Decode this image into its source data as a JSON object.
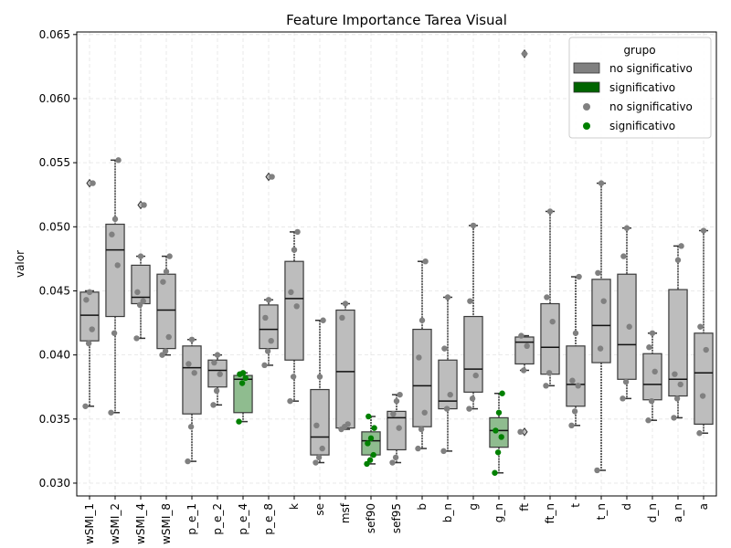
{
  "chart_data": {
    "type": "box",
    "title": "Feature Importance Tarea Visual",
    "xlabel": "",
    "ylabel": "valor",
    "ylim": [
      0.029,
      0.0652
    ],
    "yticks": [
      0.03,
      0.035,
      0.04,
      0.045,
      0.05,
      0.055,
      0.06,
      0.065
    ],
    "ytick_labels": [
      "0.030",
      "0.035",
      "0.040",
      "0.045",
      "0.050",
      "0.055",
      "0.060",
      "0.065"
    ],
    "grid": true,
    "legend": {
      "title": "grupo",
      "placement": "top-right",
      "entries": [
        {
          "label": "no significativo",
          "kind": "box",
          "color": "#808080"
        },
        {
          "label": "significativo",
          "kind": "box",
          "color": "#006400"
        },
        {
          "label": "no significativo",
          "kind": "point",
          "color": "#808080"
        },
        {
          "label": "significativo",
          "kind": "point",
          "color": "#008000"
        }
      ]
    },
    "colors": {
      "box_ns": "#bdbdbd",
      "box_sig": "#8fbc8f",
      "point_ns": "#808080",
      "point_sig": "#008000"
    },
    "categories": [
      "wSMI_1",
      "wSMI_2",
      "wSMI_4",
      "wSMI_8",
      "p_e_1",
      "p_e_2",
      "p_e_4",
      "p_e_8",
      "k",
      "se",
      "msf",
      "sef90",
      "sef95",
      "b",
      "b_n",
      "g",
      "g_n",
      "ft",
      "ft_n",
      "t",
      "t_n",
      "d",
      "d_n",
      "a_n",
      "a"
    ],
    "tick_labels": [
      "wSMI_1",
      "wSMI_2",
      "wSMI_4",
      "wSMI_8",
      "p_e_1",
      "p_e_2",
      "p_e_4",
      "p_e_8",
      "k",
      "se",
      "msf",
      "sef90",
      "sef95",
      "b",
      "b_n",
      "g",
      "g_n",
      "ft",
      "ft_n",
      "t",
      "t_n",
      "d",
      "d_n",
      "a_n",
      "a"
    ],
    "boxes": [
      {
        "label": "wSMI_1",
        "group": "no significativo",
        "q1": 0.0411,
        "median": 0.0431,
        "q3": 0.0449,
        "whislo": 0.036,
        "whishi": 0.045,
        "fliers": [
          0.0534
        ],
        "points": [
          0.036,
          0.0409,
          0.042,
          0.0443,
          0.0449,
          0.0534
        ]
      },
      {
        "label": "wSMI_2",
        "group": "no significativo",
        "q1": 0.043,
        "median": 0.0482,
        "q3": 0.0502,
        "whislo": 0.0355,
        "whishi": 0.0552,
        "fliers": [],
        "points": [
          0.0355,
          0.0417,
          0.047,
          0.0494,
          0.0506,
          0.0552
        ]
      },
      {
        "label": "wSMI_4",
        "group": "no significativo",
        "q1": 0.044,
        "median": 0.0445,
        "q3": 0.047,
        "whislo": 0.0413,
        "whishi": 0.0477,
        "fliers": [
          0.0517
        ],
        "points": [
          0.0413,
          0.0439,
          0.0442,
          0.0449,
          0.0477,
          0.0517
        ]
      },
      {
        "label": "wSMI_8",
        "group": "no significativo",
        "q1": 0.0405,
        "median": 0.0435,
        "q3": 0.0463,
        "whislo": 0.04,
        "whishi": 0.0477,
        "fliers": [],
        "points": [
          0.04,
          0.0403,
          0.0414,
          0.0457,
          0.0465,
          0.0477
        ]
      },
      {
        "label": "p_e_1",
        "group": "no significativo",
        "q1": 0.0354,
        "median": 0.039,
        "q3": 0.0407,
        "whislo": 0.0317,
        "whishi": 0.0412,
        "fliers": [],
        "points": [
          0.0317,
          0.0344,
          0.0386,
          0.0393,
          0.0412
        ]
      },
      {
        "label": "p_e_2",
        "group": "no significativo",
        "q1": 0.0375,
        "median": 0.0388,
        "q3": 0.0396,
        "whislo": 0.0361,
        "whishi": 0.04,
        "fliers": [],
        "points": [
          0.0361,
          0.0372,
          0.0385,
          0.0394,
          0.04
        ]
      },
      {
        "label": "p_e_4",
        "group": "significativo",
        "q1": 0.0355,
        "median": 0.0381,
        "q3": 0.0384,
        "whislo": 0.0348,
        "whishi": 0.0386,
        "fliers": [],
        "points": [
          0.0348,
          0.0378,
          0.0382,
          0.0385,
          0.0386
        ]
      },
      {
        "label": "p_e_8",
        "group": "no significativo",
        "q1": 0.0405,
        "median": 0.042,
        "q3": 0.0439,
        "whislo": 0.0392,
        "whishi": 0.0443,
        "fliers": [
          0.0539
        ],
        "points": [
          0.0392,
          0.0403,
          0.0411,
          0.0429,
          0.0443,
          0.0539
        ]
      },
      {
        "label": "k",
        "group": "no significativo",
        "q1": 0.0396,
        "median": 0.0444,
        "q3": 0.0473,
        "whislo": 0.0364,
        "whishi": 0.0496,
        "fliers": [],
        "points": [
          0.0364,
          0.0383,
          0.0438,
          0.0449,
          0.0482,
          0.0496
        ]
      },
      {
        "label": "se",
        "group": "no significativo",
        "q1": 0.0322,
        "median": 0.0336,
        "q3": 0.0373,
        "whislo": 0.0316,
        "whishi": 0.0427,
        "fliers": [],
        "points": [
          0.0316,
          0.032,
          0.0327,
          0.0345,
          0.0383,
          0.0427
        ]
      },
      {
        "label": "msf",
        "group": "no significativo",
        "q1": 0.0343,
        "median": 0.0387,
        "q3": 0.0435,
        "whislo": 0.0342,
        "whishi": 0.044,
        "fliers": [],
        "points": [
          0.0342,
          0.0344,
          0.0346,
          0.0429,
          0.044
        ]
      },
      {
        "label": "sef90",
        "group": "significativo",
        "q1": 0.0322,
        "median": 0.0333,
        "q3": 0.034,
        "whislo": 0.0315,
        "whishi": 0.0352,
        "fliers": [],
        "points": [
          0.0315,
          0.0318,
          0.0322,
          0.0331,
          0.0335,
          0.0343,
          0.0352
        ]
      },
      {
        "label": "sef95",
        "group": "no significativo",
        "q1": 0.0326,
        "median": 0.0351,
        "q3": 0.0356,
        "whislo": 0.0316,
        "whishi": 0.0369,
        "fliers": [],
        "points": [
          0.0316,
          0.032,
          0.0343,
          0.0354,
          0.0364,
          0.0369
        ]
      },
      {
        "label": "b",
        "group": "no significativo",
        "q1": 0.0344,
        "median": 0.0376,
        "q3": 0.042,
        "whislo": 0.0327,
        "whishi": 0.0473,
        "fliers": [],
        "points": [
          0.0327,
          0.0342,
          0.0355,
          0.0398,
          0.0427,
          0.0473
        ]
      },
      {
        "label": "b_n",
        "group": "no significativo",
        "q1": 0.0358,
        "median": 0.0364,
        "q3": 0.0396,
        "whislo": 0.0325,
        "whishi": 0.0445,
        "fliers": [],
        "points": [
          0.0325,
          0.0358,
          0.0369,
          0.0405,
          0.0445
        ]
      },
      {
        "label": "g",
        "group": "no significativo",
        "q1": 0.0371,
        "median": 0.0389,
        "q3": 0.043,
        "whislo": 0.0358,
        "whishi": 0.0501,
        "fliers": [],
        "points": [
          0.0358,
          0.0366,
          0.0384,
          0.0442,
          0.0501
        ]
      },
      {
        "label": "g_n",
        "group": "significativo",
        "q1": 0.0328,
        "median": 0.0341,
        "q3": 0.0351,
        "whislo": 0.0308,
        "whishi": 0.037,
        "fliers": [],
        "points": [
          0.0308,
          0.0324,
          0.0336,
          0.0341,
          0.0355,
          0.037
        ]
      },
      {
        "label": "ft",
        "group": "no significativo",
        "q1": 0.0393,
        "median": 0.041,
        "q3": 0.0414,
        "whislo": 0.0388,
        "whishi": 0.0415,
        "fliers": [
          0.034,
          0.0635
        ],
        "points": [
          0.034,
          0.0388,
          0.0407,
          0.0415,
          0.0635
        ]
      },
      {
        "label": "ft_n",
        "group": "no significativo",
        "q1": 0.0385,
        "median": 0.0406,
        "q3": 0.044,
        "whislo": 0.0376,
        "whishi": 0.0512,
        "fliers": [],
        "points": [
          0.0376,
          0.0386,
          0.0426,
          0.0445,
          0.0512
        ]
      },
      {
        "label": "t",
        "group": "no significativo",
        "q1": 0.036,
        "median": 0.0377,
        "q3": 0.0407,
        "whislo": 0.0345,
        "whishi": 0.0461,
        "fliers": [],
        "points": [
          0.0345,
          0.0356,
          0.0376,
          0.038,
          0.0417,
          0.0461
        ]
      },
      {
        "label": "t_n",
        "group": "no significativo",
        "q1": 0.0394,
        "median": 0.0423,
        "q3": 0.0459,
        "whislo": 0.031,
        "whishi": 0.0534,
        "fliers": [],
        "points": [
          0.031,
          0.0405,
          0.0442,
          0.0464,
          0.0534
        ]
      },
      {
        "label": "d",
        "group": "no significativo",
        "q1": 0.0381,
        "median": 0.0408,
        "q3": 0.0463,
        "whislo": 0.0366,
        "whishi": 0.0499,
        "fliers": [],
        "points": [
          0.0366,
          0.0379,
          0.0422,
          0.0477,
          0.0499
        ]
      },
      {
        "label": "d_n",
        "group": "no significativo",
        "q1": 0.0365,
        "median": 0.0377,
        "q3": 0.0401,
        "whislo": 0.0349,
        "whishi": 0.0417,
        "fliers": [],
        "points": [
          0.0349,
          0.0364,
          0.0387,
          0.0406,
          0.0417
        ]
      },
      {
        "label": "a_n",
        "group": "no significativo",
        "q1": 0.0368,
        "median": 0.0381,
        "q3": 0.0451,
        "whislo": 0.0351,
        "whishi": 0.0485,
        "fliers": [],
        "points": [
          0.0351,
          0.0366,
          0.0377,
          0.0385,
          0.0474,
          0.0485
        ]
      },
      {
        "label": "a",
        "group": "no significativo",
        "q1": 0.0346,
        "median": 0.0386,
        "q3": 0.0417,
        "whislo": 0.0339,
        "whishi": 0.0497,
        "fliers": [],
        "points": [
          0.0339,
          0.0368,
          0.0404,
          0.0422,
          0.0497
        ]
      }
    ]
  }
}
